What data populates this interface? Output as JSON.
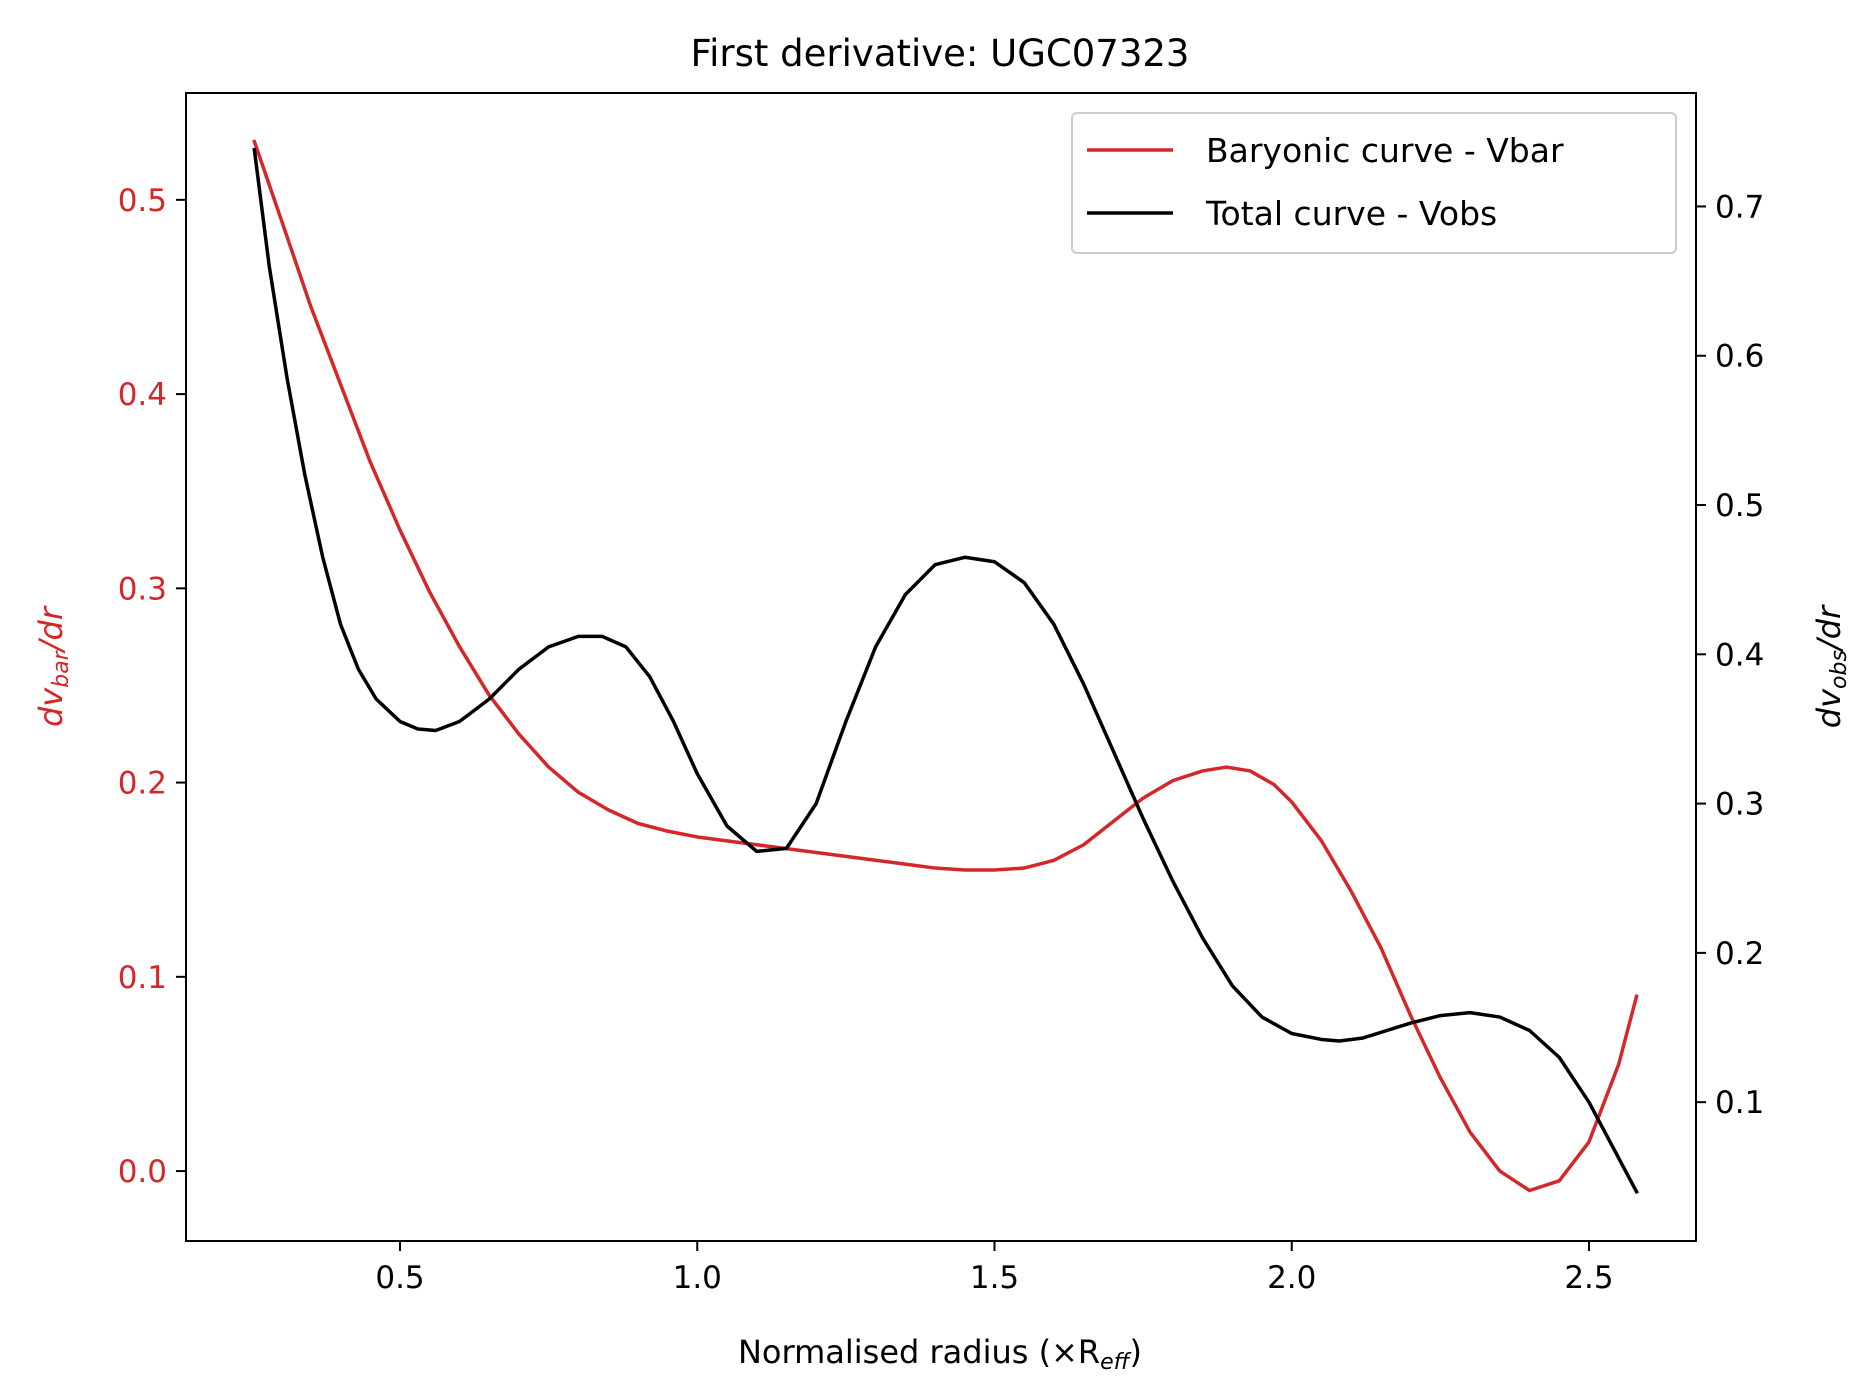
{
  "chart_data": {
    "type": "line",
    "title": "First derivative: UGC07323",
    "xlabel": "Normalised radius (×R",
    "xlabel_sub": "eff",
    "xlabel_end": ")",
    "ylabel_left": {
      "pre": "dv",
      "sub": "bar",
      "post": "/dr"
    },
    "ylabel_right": {
      "pre": "dv",
      "sub": "obs",
      "post": "/dr"
    },
    "xlim": [
      0.14,
      2.68
    ],
    "ylim_left": [
      -0.036,
      0.555
    ],
    "ylim_right": [
      0.007,
      0.776
    ],
    "x_ticks": [
      "0.5",
      "1.0",
      "1.5",
      "2.0",
      "2.5"
    ],
    "y_left_ticks": [
      "0.0",
      "0.1",
      "0.2",
      "0.3",
      "0.4",
      "0.5"
    ],
    "y_right_ticks": [
      "0.1",
      "0.2",
      "0.3",
      "0.4",
      "0.5",
      "0.6",
      "0.7"
    ],
    "grid": false,
    "legend_position": "top-right",
    "colors": {
      "bar": "#d62728",
      "obs": "#000000",
      "left_axis": "#d62728",
      "right_axis": "#000000"
    },
    "series": [
      {
        "name": "Baryonic curve - Vbar",
        "axis": "left",
        "color": "#d62728",
        "x": [
          0.255,
          0.3,
          0.35,
          0.4,
          0.45,
          0.5,
          0.55,
          0.6,
          0.65,
          0.7,
          0.75,
          0.8,
          0.85,
          0.9,
          0.95,
          1.0,
          1.05,
          1.1,
          1.15,
          1.2,
          1.25,
          1.3,
          1.35,
          1.4,
          1.45,
          1.5,
          1.55,
          1.6,
          1.65,
          1.7,
          1.75,
          1.8,
          1.85,
          1.89,
          1.93,
          1.97,
          2.0,
          2.05,
          2.1,
          2.15,
          2.2,
          2.25,
          2.3,
          2.35,
          2.4,
          2.45,
          2.5,
          2.55,
          2.58
        ],
        "y": [
          0.53,
          0.49,
          0.445,
          0.405,
          0.365,
          0.33,
          0.298,
          0.27,
          0.245,
          0.225,
          0.208,
          0.195,
          0.186,
          0.179,
          0.175,
          0.172,
          0.17,
          0.168,
          0.166,
          0.164,
          0.162,
          0.16,
          0.158,
          0.156,
          0.155,
          0.155,
          0.156,
          0.16,
          0.168,
          0.18,
          0.192,
          0.201,
          0.206,
          0.208,
          0.206,
          0.199,
          0.19,
          0.17,
          0.144,
          0.115,
          0.08,
          0.048,
          0.02,
          0.0,
          -0.01,
          -0.005,
          0.015,
          0.055,
          0.09
        ]
      },
      {
        "name": "Total curve - Vobs",
        "axis": "right",
        "color": "#000000",
        "x": [
          0.255,
          0.28,
          0.31,
          0.34,
          0.37,
          0.4,
          0.43,
          0.46,
          0.5,
          0.53,
          0.56,
          0.6,
          0.65,
          0.7,
          0.75,
          0.8,
          0.84,
          0.88,
          0.92,
          0.96,
          1.0,
          1.05,
          1.1,
          1.15,
          1.2,
          1.25,
          1.3,
          1.35,
          1.4,
          1.45,
          1.5,
          1.55,
          1.6,
          1.65,
          1.7,
          1.75,
          1.8,
          1.85,
          1.9,
          1.95,
          2.0,
          2.05,
          2.08,
          2.12,
          2.16,
          2.2,
          2.25,
          2.3,
          2.35,
          2.4,
          2.45,
          2.5,
          2.54,
          2.58
        ],
        "y": [
          0.738,
          0.66,
          0.585,
          0.52,
          0.465,
          0.42,
          0.39,
          0.37,
          0.355,
          0.35,
          0.349,
          0.355,
          0.37,
          0.39,
          0.405,
          0.412,
          0.412,
          0.405,
          0.385,
          0.355,
          0.32,
          0.285,
          0.268,
          0.27,
          0.3,
          0.355,
          0.405,
          0.44,
          0.46,
          0.465,
          0.462,
          0.448,
          0.42,
          0.38,
          0.335,
          0.29,
          0.248,
          0.21,
          0.178,
          0.157,
          0.146,
          0.142,
          0.141,
          0.143,
          0.148,
          0.153,
          0.158,
          0.16,
          0.157,
          0.148,
          0.13,
          0.1,
          0.07,
          0.04
        ]
      }
    ]
  }
}
